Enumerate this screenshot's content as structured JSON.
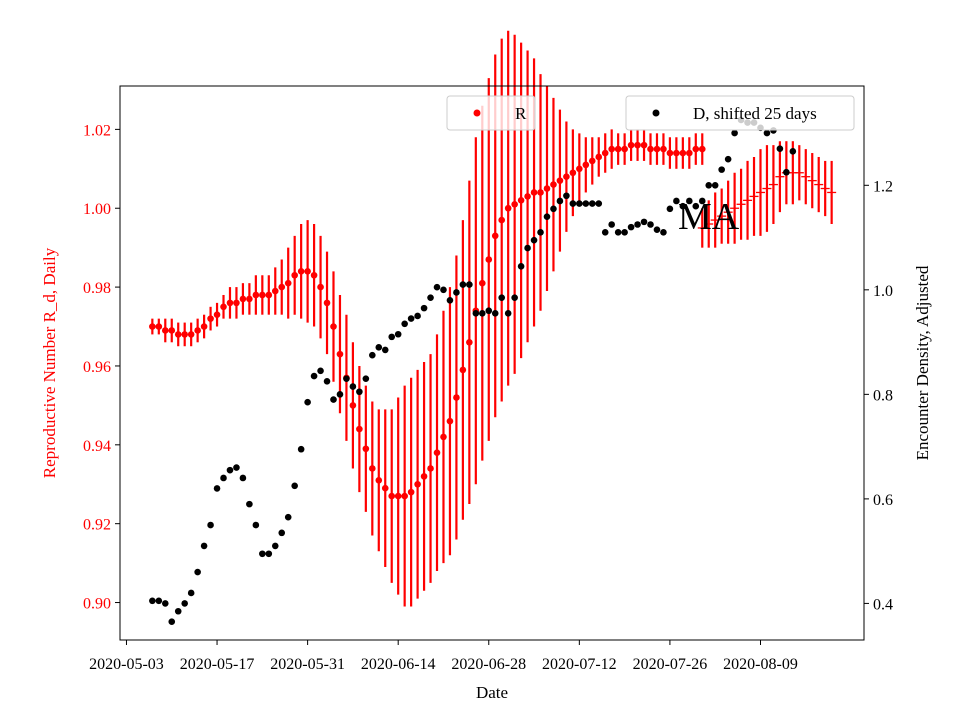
{
  "chart_data": {
    "type": "scatter",
    "xlabel": "Date",
    "x_tick_labels": [
      "2020-05-03",
      "2020-05-17",
      "2020-05-31",
      "2020-06-14",
      "2020-06-28",
      "2020-07-12",
      "2020-07-26",
      "2020-08-09"
    ],
    "xlim": [
      "2020-05-02",
      "2020-08-25"
    ],
    "y_left": {
      "label": "Reproductive Number R_d, Daily",
      "color": "#ff0000",
      "ylim": [
        0.8905,
        1.031
      ],
      "ticks": [
        "0.90",
        "0.92",
        "0.94",
        "0.96",
        "0.98",
        "1.00",
        "1.02"
      ]
    },
    "y_right": {
      "label": "Encounter Density, Adjusted",
      "color": "#000000",
      "ylim": [
        0.33,
        1.39
      ],
      "ticks": [
        "0.4",
        "0.6",
        "0.8",
        "1.0",
        "1.2"
      ]
    },
    "legend": [
      {
        "label": "R",
        "color": "#ff0000",
        "placement": "top-center"
      },
      {
        "label": "D, shifted 25 days",
        "color": "#000000",
        "placement": "top-right"
      }
    ],
    "annotation": "MA",
    "series": [
      {
        "name": "R",
        "axis": "left",
        "color": "#ff0000",
        "x_start": "2020-05-07",
        "x_end": "2020-07-30",
        "y": [
          0.97,
          0.97,
          0.969,
          0.969,
          0.968,
          0.968,
          0.968,
          0.969,
          0.97,
          0.972,
          0.973,
          0.975,
          0.976,
          0.976,
          0.977,
          0.977,
          0.978,
          0.978,
          0.978,
          0.979,
          0.98,
          0.981,
          0.983,
          0.984,
          0.984,
          0.983,
          0.98,
          0.976,
          0.97,
          0.963,
          0.957,
          0.95,
          0.944,
          0.939,
          0.934,
          0.931,
          0.929,
          0.927,
          0.927,
          0.927,
          0.928,
          0.93,
          0.932,
          0.934,
          0.938,
          0.942,
          0.946,
          0.952,
          0.959,
          0.966,
          0.974,
          0.981,
          0.987,
          0.993,
          0.997,
          1.0,
          1.001,
          1.002,
          1.003,
          1.004,
          1.004,
          1.005,
          1.006,
          1.007,
          1.008,
          1.009,
          1.01,
          1.011,
          1.012,
          1.013,
          1.014,
          1.015,
          1.015,
          1.015,
          1.016,
          1.016,
          1.016,
          1.015,
          1.015,
          1.015,
          1.014,
          1.014,
          1.014,
          1.014,
          1.015,
          1.015
        ],
        "err": [
          0.002,
          0.002,
          0.003,
          0.003,
          0.003,
          0.003,
          0.003,
          0.003,
          0.003,
          0.003,
          0.003,
          0.003,
          0.004,
          0.004,
          0.004,
          0.004,
          0.005,
          0.005,
          0.005,
          0.006,
          0.007,
          0.009,
          0.01,
          0.012,
          0.013,
          0.013,
          0.013,
          0.013,
          0.014,
          0.015,
          0.016,
          0.016,
          0.016,
          0.016,
          0.017,
          0.018,
          0.02,
          0.022,
          0.025,
          0.028,
          0.029,
          0.029,
          0.029,
          0.029,
          0.03,
          0.032,
          0.034,
          0.036,
          0.038,
          0.041,
          0.044,
          0.045,
          0.046,
          0.046,
          0.046,
          0.045,
          0.043,
          0.04,
          0.037,
          0.034,
          0.03,
          0.026,
          0.022,
          0.018,
          0.014,
          0.011,
          0.009,
          0.007,
          0.006,
          0.005,
          0.005,
          0.005,
          0.004,
          0.004,
          0.004,
          0.004,
          0.004,
          0.004,
          0.004,
          0.004,
          0.004,
          0.004,
          0.004,
          0.004,
          0.004,
          0.004
        ]
      },
      {
        "name": "MA",
        "axis": "left",
        "color": "#ff0000",
        "style": "dash-segments",
        "x_start": "2020-07-31",
        "x_end": "2020-08-20",
        "y": [
          0.995,
          0.996,
          0.997,
          0.998,
          0.999,
          1.0,
          1.001,
          1.002,
          1.003,
          1.004,
          1.005,
          1.006,
          1.008,
          1.009,
          1.009,
          1.009,
          1.008,
          1.007,
          1.006,
          1.005,
          1.004
        ],
        "err": [
          0.005,
          0.006,
          0.007,
          0.007,
          0.008,
          0.009,
          0.009,
          0.01,
          0.01,
          0.011,
          0.011,
          0.01,
          0.009,
          0.008,
          0.008,
          0.007,
          0.007,
          0.007,
          0.007,
          0.007,
          0.008
        ]
      },
      {
        "name": "D, shifted 25 days",
        "axis": "right",
        "color": "#000000",
        "x_start": "2020-05-07",
        "x_end": "2020-08-21",
        "y": [
          0.405,
          0.405,
          0.4,
          0.365,
          0.385,
          0.4,
          0.42,
          0.46,
          0.51,
          0.55,
          0.62,
          0.64,
          0.655,
          0.66,
          0.64,
          0.59,
          0.55,
          0.495,
          0.495,
          0.51,
          0.535,
          0.565,
          0.625,
          0.695,
          0.785,
          0.835,
          0.845,
          0.825,
          0.79,
          0.8,
          0.83,
          0.815,
          0.805,
          0.83,
          0.875,
          0.89,
          0.885,
          0.91,
          0.915,
          0.935,
          0.945,
          0.95,
          0.965,
          0.985,
          1.005,
          1.0,
          0.98,
          0.995,
          1.01,
          1.01,
          0.955,
          0.955,
          0.96,
          0.955,
          0.985,
          0.955,
          0.985,
          1.045,
          1.08,
          1.095,
          1.11,
          1.14,
          1.155,
          1.17,
          1.18,
          1.165,
          1.165,
          1.165,
          1.165,
          1.165,
          1.11,
          1.125,
          1.11,
          1.11,
          1.12,
          1.125,
          1.13,
          1.125,
          1.115,
          1.11,
          1.155,
          1.17,
          1.16,
          1.17,
          1.16,
          1.17,
          1.2,
          1.2,
          1.23,
          1.25,
          1.3,
          1.325,
          1.32,
          1.32,
          1.31,
          1.3,
          1.305,
          1.27,
          1.225,
          1.265
        ]
      }
    ]
  }
}
